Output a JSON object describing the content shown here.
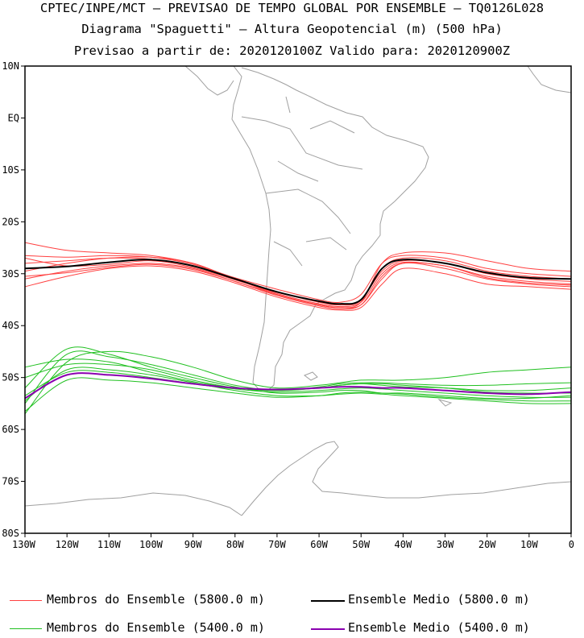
{
  "title": {
    "line1": "CPTEC/INPE/MCT — PREVISAO DE TEMPO GLOBAL POR ENSEMBLE — TQ0126L028",
    "line2": "Diagrama \"Spaguetti\" — Altura Geopotencial (m) (500 hPa)",
    "line3": "Previsao a partir de: 2020120100Z  Valido para: 2020120900Z"
  },
  "axes": {
    "lat_labels": [
      "10N",
      "EQ",
      "10S",
      "20S",
      "30S",
      "40S",
      "50S",
      "60S",
      "70S",
      "80S"
    ],
    "lon_labels": [
      "130W",
      "120W",
      "110W",
      "100W",
      "90W",
      "80W",
      "70W",
      "60W",
      "50W",
      "40W",
      "30W",
      "20W",
      "10W",
      "0"
    ]
  },
  "legend": {
    "members_5800": "Membros do Ensemble (5800.0 m)",
    "mean_5800": "Ensemble Medio (5800.0 m)",
    "members_5400": "Membros do Ensemble (5400.0 m)",
    "mean_5400": "Ensemble Medio (5400.0 m)"
  },
  "colors": {
    "members_5800": "#ff4040",
    "mean_5800": "#000000",
    "members_5400": "#20c020",
    "mean_5400": "#8a00b0",
    "coastline": "#a0a0a0"
  },
  "chart_data": {
    "type": "line",
    "x": [
      -130,
      -120,
      -110,
      -100,
      -90,
      -80,
      -70,
      -60,
      -55,
      -50,
      -45,
      -40,
      -30,
      -20,
      -10,
      0
    ],
    "xlim": [
      -130,
      0
    ],
    "ylim": [
      -80,
      10
    ],
    "series": [
      {
        "name": "Ensemble Medio (5800.0 m)",
        "values": [
          -29,
          -28.6,
          -27.8,
          -27.3,
          -28.5,
          -31,
          -33.5,
          -35.3,
          -35.8,
          -35,
          -29,
          -27.3,
          -28,
          -29.8,
          -30.8,
          -31
        ]
      },
      {
        "name": "Ensemble Medio (5400.0 m)",
        "values": [
          -54,
          -49.5,
          -49.5,
          -50.2,
          -51.2,
          -52,
          -52.3,
          -52,
          -51.8,
          -51.8,
          -52,
          -52,
          -52.5,
          -53,
          -53.2,
          -52.8
        ]
      },
      {
        "group": "members_5800",
        "values": [
          -24,
          -25.5,
          -26,
          -26.5,
          -28,
          -31,
          -34,
          -36,
          -36.5,
          -35.5,
          -28,
          -26,
          -26,
          -27.5,
          -29,
          -29.5
        ]
      },
      {
        "group": "members_5800",
        "values": [
          -26.5,
          -26.8,
          -26.5,
          -26.8,
          -28.2,
          -30.8,
          -33,
          -35,
          -35.5,
          -34,
          -28,
          -26.5,
          -27,
          -29,
          -30,
          -30.5
        ]
      },
      {
        "group": "members_5800",
        "values": [
          -29.5,
          -28,
          -27,
          -26.8,
          -28,
          -31,
          -33.5,
          -35.5,
          -36,
          -35,
          -29.5,
          -27.5,
          -28,
          -30,
          -31,
          -31.5
        ]
      },
      {
        "group": "members_5800",
        "values": [
          -31,
          -29.5,
          -28.5,
          -28,
          -29,
          -31.5,
          -34,
          -36,
          -36.5,
          -36,
          -31,
          -28,
          -29,
          -31,
          -32,
          -32.5
        ]
      },
      {
        "group": "members_5800",
        "values": [
          -32.5,
          -30.5,
          -29,
          -28.5,
          -29.5,
          -31.8,
          -34.5,
          -36.5,
          -37,
          -36.5,
          -32,
          -29,
          -30,
          -32,
          -32.5,
          -33
        ]
      },
      {
        "group": "members_5800",
        "values": [
          -28,
          -27.5,
          -27,
          -27.2,
          -28.5,
          -31,
          -33.8,
          -35.8,
          -36.3,
          -35.5,
          -30,
          -27.8,
          -28.5,
          -30.5,
          -31.5,
          -32
        ]
      },
      {
        "group": "members_5800",
        "values": [
          -27,
          -28.5,
          -28.2,
          -27.5,
          -28.8,
          -31.2,
          -33.6,
          -35.4,
          -36,
          -35.2,
          -29,
          -27,
          -27.5,
          -29.5,
          -30.5,
          -31
        ]
      },
      {
        "group": "members_5800",
        "values": [
          -30.5,
          -29.8,
          -28.8,
          -28.2,
          -29.2,
          -31.5,
          -34.2,
          -36.2,
          -36.8,
          -36,
          -30.5,
          -28,
          -28.5,
          -30.8,
          -31.8,
          -32.2
        ]
      },
      {
        "group": "members_5400",
        "values": [
          -57,
          -47,
          -45,
          -46,
          -48,
          -50.5,
          -52,
          -51.5,
          -51,
          -50.5,
          -50.5,
          -50.5,
          -50,
          -49,
          -48.5,
          -48
        ]
      },
      {
        "group": "members_5400",
        "values": [
          -55,
          -45.5,
          -46,
          -47.5,
          -49.5,
          -51.5,
          -52.5,
          -52,
          -51.5,
          -51.2,
          -51.5,
          -51.8,
          -52,
          -52.5,
          -52.5,
          -52
        ]
      },
      {
        "group": "members_5400",
        "values": [
          -52,
          -44.5,
          -45.5,
          -48,
          -50,
          -51.8,
          -53,
          -52.8,
          -52.5,
          -52.5,
          -53,
          -53,
          -53.5,
          -54,
          -54,
          -53.5
        ]
      },
      {
        "group": "members_5400",
        "values": [
          -54.5,
          -48.5,
          -48.5,
          -49.5,
          -51,
          -52.5,
          -53.5,
          -53.5,
          -53.2,
          -53,
          -53.2,
          -53.5,
          -54,
          -54.5,
          -55,
          -55
        ]
      },
      {
        "group": "members_5400",
        "values": [
          -56.5,
          -50.5,
          -50.5,
          -51,
          -52,
          -53,
          -53.8,
          -53.5,
          -53,
          -52.8,
          -53,
          -53.2,
          -53.8,
          -54.2,
          -54.5,
          -54.5
        ]
      },
      {
        "group": "members_5400",
        "values": [
          -50,
          -47.5,
          -47.5,
          -48.5,
          -50.5,
          -52,
          -52.5,
          -51.8,
          -51.2,
          -51,
          -51,
          -51.2,
          -51.5,
          -51.5,
          -51.2,
          -51
        ]
      },
      {
        "group": "members_5400",
        "values": [
          -53.5,
          -49,
          -49,
          -50,
          -51.2,
          -52.2,
          -52.8,
          -52.5,
          -52.2,
          -52,
          -52.2,
          -52.5,
          -53,
          -53.5,
          -53.8,
          -53.8
        ]
      },
      {
        "group": "members_5400",
        "values": [
          -48,
          -46.5,
          -47,
          -49,
          -50.8,
          -52,
          -52.5,
          -52,
          -51.5,
          -51.2,
          -51.2,
          -51.5,
          -52,
          -52.8,
          -53,
          -53
        ]
      }
    ]
  }
}
